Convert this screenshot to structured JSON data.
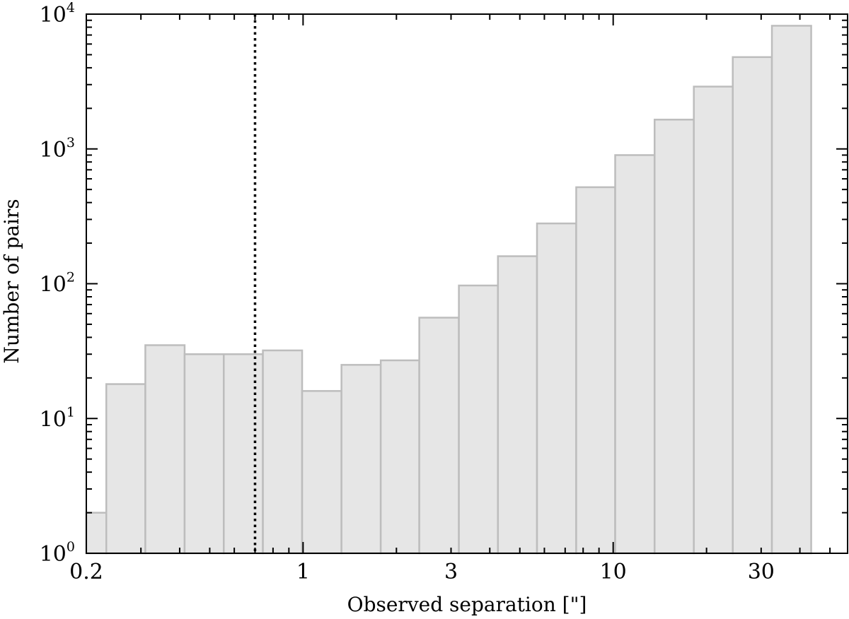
{
  "chart_data": {
    "type": "bar",
    "title": "",
    "xlabel": "Observed separation [\"]",
    "ylabel": "Number of pairs",
    "xscale": "log",
    "yscale": "log",
    "xlim": [
      0.2,
      57
    ],
    "ylim": [
      1,
      10000
    ],
    "x_ticks": [
      {
        "value": 0.2,
        "label": "0.2"
      },
      {
        "value": 1,
        "label": "1"
      },
      {
        "value": 3,
        "label": "3"
      },
      {
        "value": 10,
        "label": "10"
      },
      {
        "value": 30,
        "label": "30"
      }
    ],
    "y_ticks": [
      {
        "value": 1,
        "base": "10",
        "exp": "0"
      },
      {
        "value": 10,
        "base": "10",
        "exp": "1"
      },
      {
        "value": 100,
        "base": "10",
        "exp": "2"
      },
      {
        "value": 1000,
        "base": "10",
        "exp": "3"
      },
      {
        "value": 10000,
        "base": "10",
        "exp": "4"
      }
    ],
    "bins": [
      {
        "x0": 0.18,
        "x1": 0.232,
        "count": 2
      },
      {
        "x0": 0.232,
        "x1": 0.31,
        "count": 18
      },
      {
        "x0": 0.31,
        "x1": 0.415,
        "count": 35
      },
      {
        "x0": 0.415,
        "x1": 0.555,
        "count": 30
      },
      {
        "x0": 0.555,
        "x1": 0.742,
        "count": 30
      },
      {
        "x0": 0.742,
        "x1": 0.993,
        "count": 32
      },
      {
        "x0": 0.993,
        "x1": 1.33,
        "count": 16
      },
      {
        "x0": 1.33,
        "x1": 1.78,
        "count": 25
      },
      {
        "x0": 1.78,
        "x1": 2.37,
        "count": 27
      },
      {
        "x0": 2.37,
        "x1": 3.18,
        "count": 56
      },
      {
        "x0": 3.18,
        "x1": 4.25,
        "count": 97
      },
      {
        "x0": 4.25,
        "x1": 5.68,
        "count": 160
      },
      {
        "x0": 5.68,
        "x1": 7.6,
        "count": 280
      },
      {
        "x0": 7.6,
        "x1": 10.15,
        "count": 520
      },
      {
        "x0": 10.15,
        "x1": 13.6,
        "count": 900
      },
      {
        "x0": 13.6,
        "x1": 18.2,
        "count": 1650
      },
      {
        "x0": 18.2,
        "x1": 24.3,
        "count": 2900
      },
      {
        "x0": 24.3,
        "x1": 32.5,
        "count": 4800
      },
      {
        "x0": 32.5,
        "x1": 43.5,
        "count": 8200
      }
    ],
    "reference_line": {
      "x": 0.7,
      "style": "dotted",
      "color": "#000000"
    },
    "bar_fill": "#e6e6e6",
    "bar_edge": "#bdbdbd",
    "grid": false,
    "legend": "none"
  }
}
